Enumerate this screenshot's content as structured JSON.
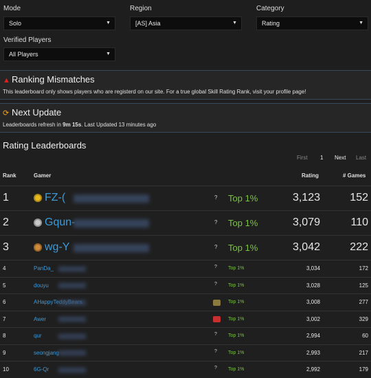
{
  "filters": {
    "mode": {
      "label": "Mode",
      "value": "Solo"
    },
    "region": {
      "label": "Region",
      "value": "[AS] Asia"
    },
    "category": {
      "label": "Category",
      "value": "Rating"
    },
    "verified": {
      "label": "Verified Players",
      "value": "All Players"
    }
  },
  "mismatch": {
    "title": "Ranking Mismatches",
    "text": "This leaderboard only shows players who are registerd on our site. For a true global Skill Rating Rank, visit your profile page!"
  },
  "update": {
    "title": "Next Update",
    "text_prefix": "Leaderboards refresh in ",
    "time": "9m 15s",
    "text_suffix": ". Last Updated 13 minutes ago"
  },
  "leaderboard": {
    "title": "Rating Leaderboards",
    "pager": {
      "first": "First",
      "page": "1",
      "next": "Next",
      "last": "Last"
    },
    "columns": {
      "rank": "Rank",
      "gamer": "Gamer",
      "rating": "Rating",
      "games": "# Games"
    },
    "rows": [
      {
        "rank": "1",
        "gamer": "FZ-(",
        "mark": "?",
        "top": "Top 1%",
        "rating": "3,123",
        "games": "152",
        "medal": "gold"
      },
      {
        "rank": "2",
        "gamer": "Gqun-",
        "mark": "?",
        "top": "Top 1%",
        "rating": "3,079",
        "games": "110",
        "medal": "silver"
      },
      {
        "rank": "3",
        "gamer": "wg-Y",
        "mark": "?",
        "top": "Top 1%",
        "rating": "3,042",
        "games": "222",
        "medal": "bronze"
      },
      {
        "rank": "4",
        "gamer": "PanDa_",
        "mark": "?",
        "top": "Top 1%",
        "rating": "3,034",
        "games": "172"
      },
      {
        "rank": "5",
        "gamer": "douyu",
        "mark": "?",
        "top": "Top 1%",
        "rating": "3,028",
        "games": "125"
      },
      {
        "rank": "6",
        "gamer": "AHappyTeddyBears",
        "mark": "",
        "top": "Top 1%",
        "rating": "3,008",
        "games": "277"
      },
      {
        "rank": "7",
        "gamer": "Awer",
        "mark": "",
        "top": "Top 1%",
        "rating": "3,002",
        "games": "329"
      },
      {
        "rank": "8",
        "gamer": "qur",
        "mark": "?",
        "top": "Top 1%",
        "rating": "2,994",
        "games": "60"
      },
      {
        "rank": "9",
        "gamer": "seongjang",
        "mark": "?",
        "top": "Top 1%",
        "rating": "2,993",
        "games": "217"
      },
      {
        "rank": "10",
        "gamer": "6G-Qr",
        "mark": "?",
        "top": "Top 1%",
        "rating": "2,992",
        "games": "179"
      }
    ]
  },
  "colors": {
    "accent": "#3d9ad8",
    "top": "#7cc443",
    "warning": "#e02020",
    "update": "#f0a020"
  }
}
